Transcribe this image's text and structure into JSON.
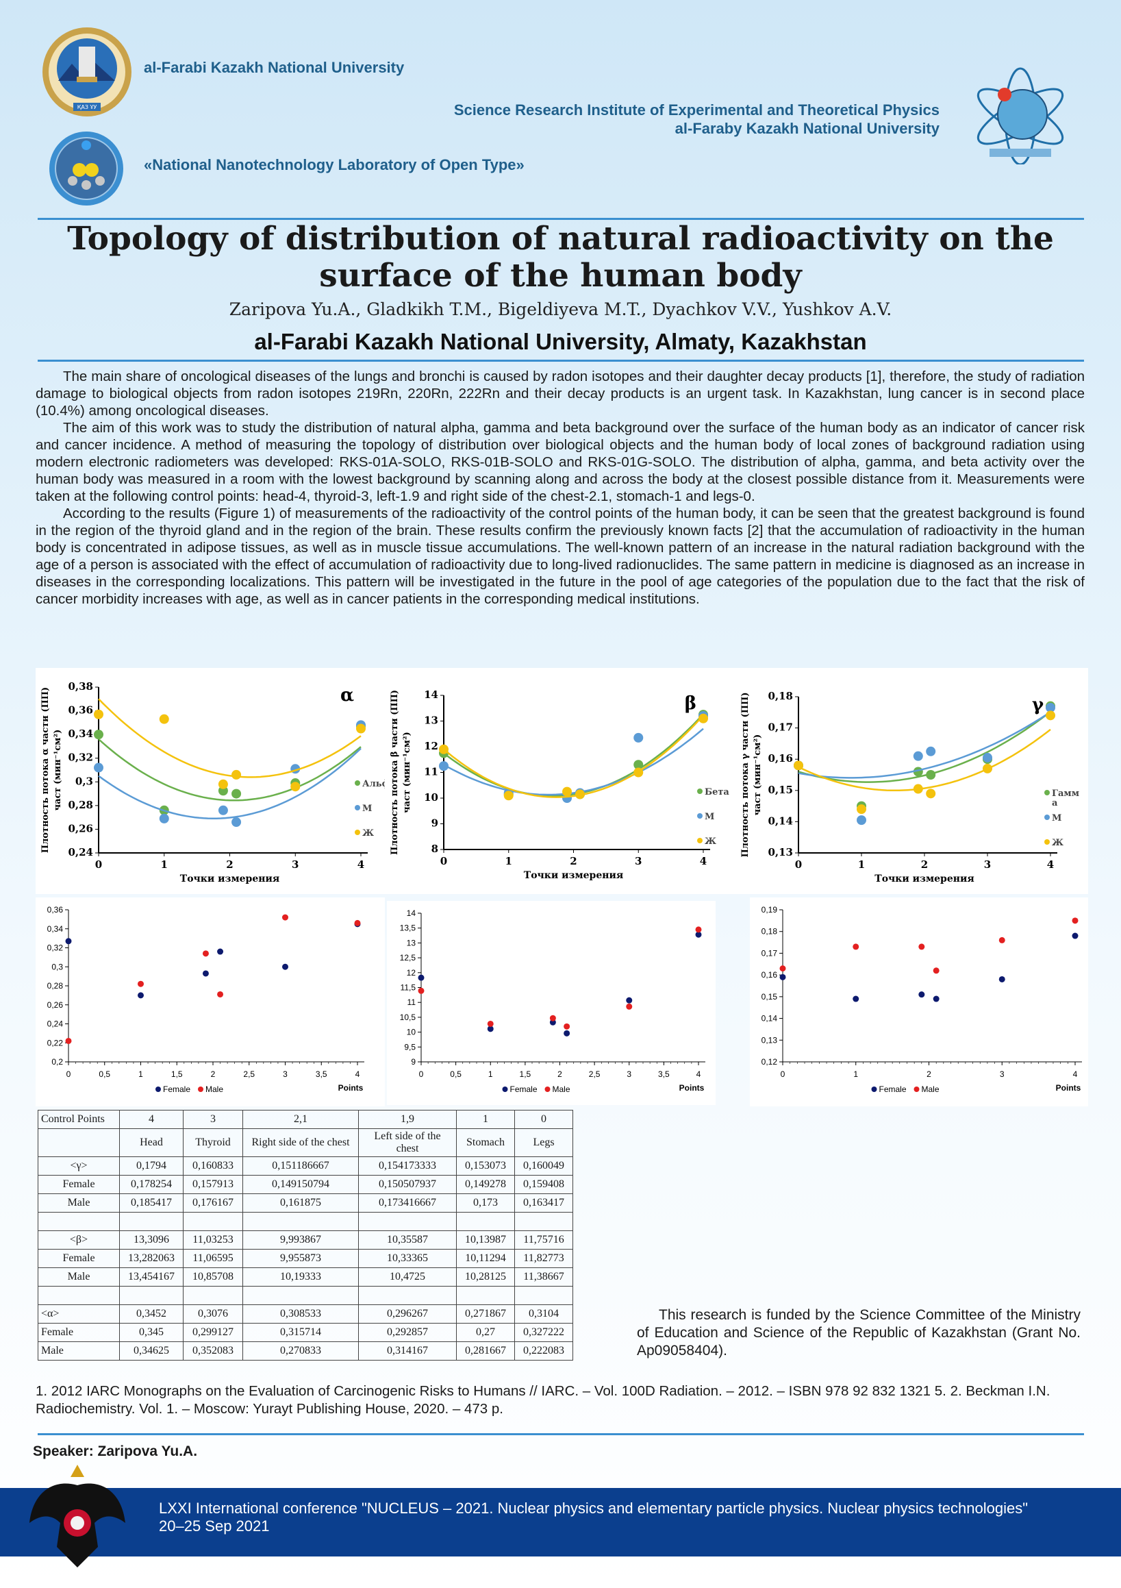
{
  "header": {
    "university": "al-Farabi Kazakh National University",
    "institute_line1": "Science Research Institute of Experimental and Theoretical Physics",
    "institute_line2": "al-Faraby Kazakh National University",
    "laboratory": "«National Nanotechnology Laboratory of Open Type»",
    "seal_text": "ҚАЗ ҰУ"
  },
  "title": "Topology of distribution of natural radioactivity on the surface of the human body",
  "authors": "Zaripova Yu.A., Gladkikh T.M., Bigeldiyeva M.T., Dyachkov V.V., Yushkov A.V.",
  "affiliation": "al-Farabi Kazakh National University, Almaty, Kazakhstan",
  "paragraphs": [
    "The main share of oncological diseases of the lungs and bronchi is caused by radon isotopes and their daughter decay products [1], therefore, the study of radiation damage to biological objects from radon isotopes 219Rn, 220Rn, 222Rn and their decay products is an urgent task. In Kazakhstan, lung cancer is in second place (10.4%) among oncological diseases.",
    "The aim of this work was to study the distribution of natural alpha, gamma and beta background over the surface of the human body as an indicator of cancer risk and cancer incidence. A method of measuring the topology of distribution over biological objects and the human body of local zones of background radiation using modern electronic radiometers was developed: RKS-01A-SOLO, RKS-01B-SOLO and RKS-01G-SOLO. The distribution of alpha, gamma, and beta activity over the human body was measured in a room with the lowest background by scanning along and across the body at the closest possible distance from it. Measurements were taken at the following control points: head-4, thyroid-3, left-1.9 and right side of the chest-2.1, stomach-1 and legs-0.",
    "According to the results (Figure 1) of measurements of the radioactivity of the control points of the human body, it can be seen that the greatest background is found in the region of the thyroid gland and in the region of the brain. These results confirm the previously known facts [2] that the accumulation of radioactivity in the human body is concentrated in adipose tissues, as well as in muscle tissue accumulations. The well-known pattern of an increase in the natural radiation background with the age of a person is associated with the effect of accumulation of radioactivity due to long-lived radionuclides. The same pattern in medicine is diagnosed as an increase in diseases in the corresponding localizations. This pattern will be investigated in the future in the pool of age categories of the population due to the fact that the risk of cancer morbidity increases with age, as well as in cancer patients in the corresponding medical institutions."
  ],
  "chart_data": [
    {
      "type": "scatter",
      "title": "α",
      "ylabel": "Плотность потока α части (ПП) част (мин⁻¹см²)",
      "xlabel": "Точки измерения",
      "xlim": [
        0,
        4
      ],
      "ylim": [
        0.24,
        0.38
      ],
      "yticks": [
        "0,24",
        "0,26",
        "0,28",
        "0,3",
        "0,32",
        "0,34",
        "0,36",
        "0,38"
      ],
      "xticks": [
        "0",
        "1",
        "2",
        "3",
        "4"
      ],
      "legend": "right",
      "series": [
        {
          "name": "Альфа",
          "color": "#6ab04c",
          "x": [
            0,
            1,
            1.9,
            2.1,
            3,
            4
          ],
          "y": [
            0.34,
            0.276,
            0.2925,
            0.29,
            0.299,
            0.347
          ],
          "fit": [
            0.336,
            -0.05,
            0.0121
          ]
        },
        {
          "name": "М",
          "color": "#5b9bd5",
          "x": [
            0,
            1,
            1.9,
            2.1,
            3,
            4
          ],
          "y": [
            0.312,
            0.269,
            0.276,
            0.266,
            0.311,
            0.348
          ],
          "fit": [
            0.305,
            -0.041,
            0.0117
          ]
        },
        {
          "name": "Ж",
          "color": "#f4c20d",
          "x": [
            0,
            1,
            1.9,
            2.1,
            3,
            4
          ],
          "y": [
            0.357,
            0.353,
            0.298,
            0.306,
            0.296,
            0.345
          ],
          "fit": [
            0.37,
            -0.057,
            0.0123
          ]
        }
      ]
    },
    {
      "type": "scatter",
      "title": "β",
      "ylabel": "Плотность потока β части (ПП) част (мин⁻¹см²)",
      "xlabel": "Точки измерения",
      "xlim": [
        0,
        4
      ],
      "ylim": [
        8,
        14
      ],
      "yticks": [
        "8",
        "9",
        "10",
        "11",
        "12",
        "13",
        "14"
      ],
      "xticks": [
        "0",
        "1",
        "2",
        "3",
        "4"
      ],
      "legend": "right",
      "series": [
        {
          "name": "Бета",
          "color": "#6ab04c",
          "x": [
            0,
            1,
            1.9,
            2.1,
            3,
            4
          ],
          "y": [
            11.75,
            10.14,
            10.1,
            10.15,
            11.3,
            13.25
          ],
          "fit": [
            11.75,
            -1.98,
            0.59
          ]
        },
        {
          "name": "М",
          "color": "#5b9bd5",
          "x": [
            0,
            1,
            1.9,
            2.1,
            3,
            4
          ],
          "y": [
            11.25,
            10.2,
            10.0,
            10.2,
            12.35,
            13.2
          ],
          "fit": [
            11.3,
            -1.45,
            0.45
          ]
        },
        {
          "name": "Ж",
          "color": "#f4c20d",
          "x": [
            0,
            1,
            1.9,
            2.1,
            3,
            4
          ],
          "y": [
            11.9,
            10.1,
            10.25,
            10.15,
            11.0,
            13.1
          ],
          "fit": [
            11.9,
            -2.15,
            0.62
          ]
        }
      ]
    },
    {
      "type": "scatter",
      "title": "γ",
      "ylabel": "Плотность потока γ части (ПП) част (мин⁻¹см²)",
      "xlabel": "Точки измерения",
      "xlim": [
        0,
        4
      ],
      "ylim": [
        0.13,
        0.18
      ],
      "yticks": [
        "0,13",
        "0,14",
        "0,15",
        "0,16",
        "0,17",
        "0,18"
      ],
      "xticks": [
        "0",
        "1",
        "2",
        "3",
        "4"
      ],
      "legend": "right",
      "series": [
        {
          "name": "Гамм а",
          "color": "#6ab04c",
          "x": [
            0,
            1,
            1.9,
            2.1,
            3,
            4
          ],
          "y": [
            0.158,
            0.145,
            0.156,
            0.155,
            0.16,
            0.177
          ],
          "fit": [
            0.156,
            -0.006,
            0.0027
          ]
        },
        {
          "name": "М",
          "color": "#5b9bd5",
          "x": [
            0,
            1,
            1.9,
            2.1,
            3,
            4
          ],
          "y": [
            0.158,
            0.1405,
            0.161,
            0.1625,
            0.1605,
            0.1765
          ],
          "fit": [
            0.1555,
            -0.0035,
            0.0021
          ]
        },
        {
          "name": "Ж",
          "color": "#f4c20d",
          "x": [
            0,
            1,
            1.9,
            2.1,
            3,
            4
          ],
          "y": [
            0.158,
            0.144,
            0.1505,
            0.149,
            0.157,
            0.174
          ],
          "fit": [
            0.1575,
            -0.0098,
            0.0032
          ]
        }
      ]
    },
    {
      "type": "scatter",
      "xlabel": "Points",
      "xlim": [
        0,
        4
      ],
      "ylim": [
        0.2,
        0.36
      ],
      "yticks": [
        "0,2",
        "0,22",
        "0,24",
        "0,26",
        "0,28",
        "0,3",
        "0,32",
        "0,34",
        "0,36"
      ],
      "xticks": [
        "0",
        "0,5",
        "1",
        "1,5",
        "2",
        "2,5",
        "3",
        "3,5",
        "4"
      ],
      "legend": "bottom",
      "series": [
        {
          "name": "Female",
          "color": "#0d1a6e",
          "x": [
            0,
            1,
            1.9,
            2.1,
            3,
            4
          ],
          "y": [
            0.327,
            0.27,
            0.293,
            0.316,
            0.3,
            0.345
          ]
        },
        {
          "name": "Male",
          "color": "#e32020",
          "x": [
            0,
            1,
            1.9,
            2.1,
            3,
            4
          ],
          "y": [
            0.222,
            0.282,
            0.314,
            0.271,
            0.352,
            0.346
          ]
        }
      ]
    },
    {
      "type": "scatter",
      "xlabel": "Points",
      "xlim": [
        0,
        4
      ],
      "ylim": [
        9,
        14
      ],
      "yticks": [
        "9",
        "9,5",
        "10",
        "10,5",
        "11",
        "11,5",
        "12",
        "12,5",
        "13",
        "13,5",
        "14"
      ],
      "xticks": [
        "0",
        "0,5",
        "1",
        "1,5",
        "2",
        "2,5",
        "3",
        "3,5",
        "4"
      ],
      "legend": "bottom",
      "series": [
        {
          "name": "Female",
          "color": "#0d1a6e",
          "x": [
            0,
            1,
            1.9,
            2.1,
            3,
            4
          ],
          "y": [
            11.83,
            10.11,
            10.33,
            9.96,
            11.07,
            13.28
          ]
        },
        {
          "name": "Male",
          "color": "#e32020",
          "x": [
            0,
            1,
            1.9,
            2.1,
            3,
            4
          ],
          "y": [
            11.39,
            10.28,
            10.47,
            10.19,
            10.86,
            13.45
          ]
        }
      ]
    },
    {
      "type": "scatter",
      "xlabel": "Points",
      "xlim": [
        0,
        4
      ],
      "ylim": [
        0.12,
        0.19
      ],
      "yticks": [
        "0,12",
        "0,13",
        "0,14",
        "0,15",
        "0,16",
        "0,17",
        "0,18",
        "0,19"
      ],
      "xticks": [
        "0",
        "1",
        "2",
        "3",
        "4"
      ],
      "legend": "bottom",
      "series": [
        {
          "name": "Female",
          "color": "#0d1a6e",
          "x": [
            0,
            1,
            1.9,
            2.1,
            3,
            4
          ],
          "y": [
            0.159,
            0.149,
            0.151,
            0.149,
            0.158,
            0.178
          ]
        },
        {
          "name": "Male",
          "color": "#e32020",
          "x": [
            0,
            1,
            1.9,
            2.1,
            3,
            4
          ],
          "y": [
            0.163,
            0.173,
            0.173,
            0.162,
            0.176,
            0.185
          ]
        }
      ]
    }
  ],
  "table": {
    "header_label": "Control Points",
    "points": [
      "4",
      "3",
      "2,1",
      "1,9",
      "1",
      "0"
    ],
    "names": [
      "Head",
      "Thyroid",
      "Right side of the chest",
      "Left side of the chest",
      "Stomach",
      "Legs"
    ],
    "groups": [
      {
        "rows": [
          {
            "label": "<γ>",
            "values": [
              "0,1794",
              "0,160833",
              "0,151186667",
              "0,154173333",
              "0,153073",
              "0,160049"
            ]
          },
          {
            "label": "Female",
            "values": [
              "0,178254",
              "0,157913",
              "0,149150794",
              "0,150507937",
              "0,149278",
              "0,159408"
            ]
          },
          {
            "label": "Male",
            "values": [
              "0,185417",
              "0,176167",
              "0,161875",
              "0,173416667",
              "0,173",
              "0,163417"
            ]
          }
        ]
      },
      {
        "rows": [
          {
            "label": "<β>",
            "values": [
              "13,3096",
              "11,03253",
              "9,993867",
              "10,35587",
              "10,13987",
              "11,75716"
            ]
          },
          {
            "label": "Female",
            "values": [
              "13,282063",
              "11,06595",
              "9,955873",
              "10,33365",
              "10,11294",
              "11,82773"
            ]
          },
          {
            "label": "Male",
            "values": [
              "13,454167",
              "10,85708",
              "10,19333",
              "10,4725",
              "10,28125",
              "11,38667"
            ]
          }
        ]
      },
      {
        "rows": [
          {
            "label": "<α>",
            "values": [
              "0,3452",
              "0,3076",
              "0,308533",
              "0,296267",
              "0,271867",
              "0,3104"
            ]
          },
          {
            "label": "Female",
            "values": [
              "0,345",
              "0,299127",
              "0,315714",
              "0,292857",
              "0,27",
              "0,327222"
            ]
          },
          {
            "label": "Male",
            "values": [
              "0,34625",
              "0,352083",
              "0,270833",
              "0,314167",
              "0,281667",
              "0,222083"
            ]
          }
        ]
      }
    ]
  },
  "funding": "This research is funded by the Science Committee of the Ministry of Education and Science of the Republic of Kazakhstan (Grant No. Ap09058404).",
  "references": "1. 2012 IARC Monographs on the Evaluation of Carcinogenic Risks to Humans // IARC. – Vol. 100D Radiation. – 2012. – ISBN 978 92 832 1321 5. 2. Beckman I.N. Radiochemistry. Vol. 1. – Moscow: Yurayt Publishing House, 2020. – 473 p.",
  "speaker": "Speaker: Zaripova Yu.A.",
  "conference_line1": "LXXI International conference \"NUCLEUS – 2021. Nuclear physics and elementary particle physics. Nuclear physics technologies\"",
  "conference_line2": "20–25 Sep 2021",
  "colors": {
    "header_text": "#1f5f8b",
    "rule": "#3a8fd0",
    "banner": "#0b3f8e"
  }
}
